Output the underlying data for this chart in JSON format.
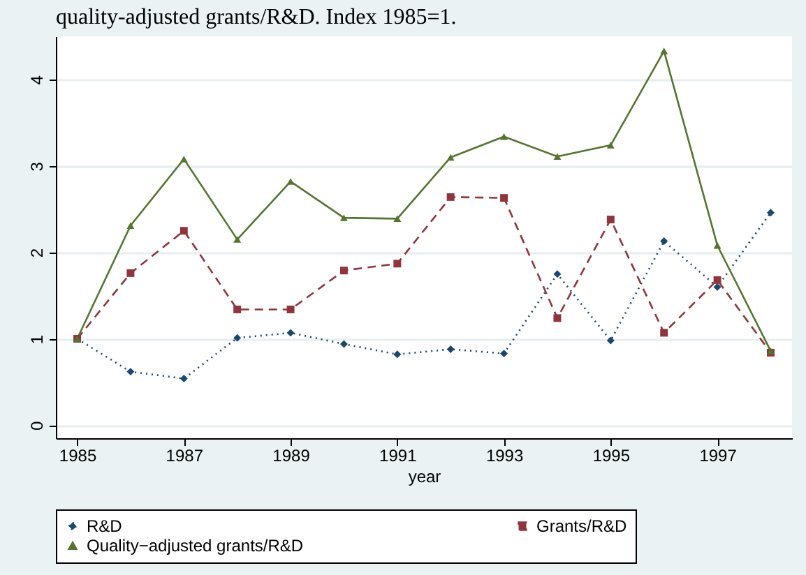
{
  "chart_data": {
    "type": "line",
    "title": "quality-adjusted grants/R&D. Index 1985=1.",
    "xlabel": "year",
    "x": [
      1985,
      1986,
      1987,
      1988,
      1989,
      1990,
      1991,
      1992,
      1993,
      1994,
      1995,
      1996,
      1997,
      1998
    ],
    "xlim": [
      1984.6,
      1998.4
    ],
    "xticks": [
      1985,
      1987,
      1989,
      1991,
      1993,
      1995,
      1997
    ],
    "ylim": [
      -0.15,
      4.5
    ],
    "yticks": [
      0,
      1,
      2,
      3,
      4
    ],
    "grid": "y",
    "legend": "bottom",
    "series": [
      {
        "name": "R&D",
        "color": "#1a476f",
        "marker": "diamond",
        "line_style": "dotted",
        "values": [
          1.0,
          0.62,
          0.54,
          1.01,
          1.07,
          0.94,
          0.82,
          0.88,
          0.83,
          1.75,
          0.98,
          2.13,
          1.6,
          2.46
        ]
      },
      {
        "name": "Grants/R&D",
        "color": "#90353b",
        "marker": "square",
        "line_style": "dashed",
        "values": [
          1.0,
          1.76,
          2.25,
          1.34,
          1.34,
          1.79,
          1.87,
          2.64,
          2.63,
          1.24,
          2.38,
          1.07,
          1.68,
          0.84
        ]
      },
      {
        "name": "Quality−adjusted grants/R&D",
        "color": "#55752f",
        "marker": "triangle",
        "line_style": "solid",
        "values": [
          1.0,
          2.31,
          3.08,
          2.15,
          2.82,
          2.4,
          2.39,
          3.1,
          3.34,
          3.11,
          3.24,
          4.33,
          2.08,
          0.86
        ]
      }
    ]
  }
}
